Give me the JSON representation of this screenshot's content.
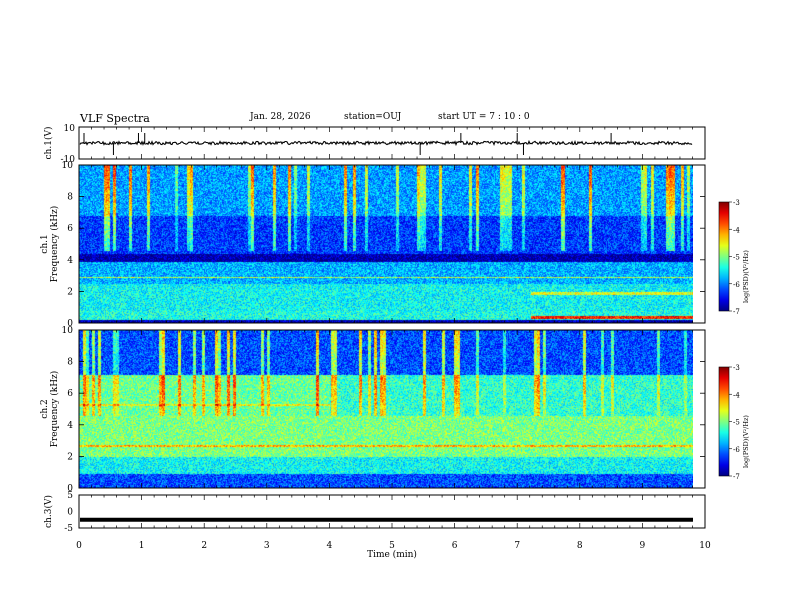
{
  "header": {
    "title": "VLF Spectra",
    "date": "Jan. 28, 2026",
    "station": "station=OUJ",
    "start_ut": "start  UT =   7 : 10 : 0"
  },
  "chart_data": [
    {
      "type": "line",
      "panel": "ch1-waveform",
      "ylabel": "ch.1(V)",
      "ylim": [
        -10,
        10
      ],
      "y_ticks": [
        "10",
        "-10"
      ],
      "xlim": [
        0,
        10
      ],
      "trace_level": 0,
      "spikes_min": [
        0.08,
        0.55,
        0.95,
        1.05,
        5.45,
        6.1,
        7.0,
        7.1,
        8.5
      ]
    },
    {
      "type": "heatmap",
      "panel": "ch1-spectrogram",
      "ylabel": "ch.1\nFrequency (kHz)",
      "ylim": [
        0,
        10
      ],
      "y_ticks": [
        "0",
        "2",
        "4",
        "6",
        "8",
        "10"
      ],
      "xlim": [
        0,
        10
      ],
      "colorbar": {
        "label": "log(PSD)(V²/Hz)",
        "ticks": [
          "-3",
          "-4",
          "-5",
          "-6",
          "-7"
        ],
        "range": [
          -7,
          -3
        ]
      }
    },
    {
      "type": "heatmap",
      "panel": "ch2-spectrogram",
      "ylabel": "ch.2\nFrequency (kHz)",
      "ylim": [
        0,
        10
      ],
      "y_ticks": [
        "0",
        "2",
        "4",
        "6",
        "8",
        "10"
      ],
      "xlim": [
        0,
        10
      ],
      "colorbar": {
        "label": "log(PSD)(V²/Hz)",
        "ticks": [
          "-3",
          "-4",
          "-5",
          "-6",
          "-7"
        ],
        "range": [
          -7,
          -3
        ]
      }
    },
    {
      "type": "line",
      "panel": "ch3-waveform",
      "ylabel": "ch.3(V)",
      "ylim": [
        -5,
        5
      ],
      "y_ticks": [
        "5",
        "0",
        "-5"
      ],
      "xlim": [
        0,
        10
      ],
      "trace_level": -2.5,
      "xlabel": "Time (min)",
      "x_ticks": [
        "0",
        "1",
        "2",
        "3",
        "4",
        "5",
        "6",
        "7",
        "8",
        "9",
        "10"
      ]
    }
  ]
}
